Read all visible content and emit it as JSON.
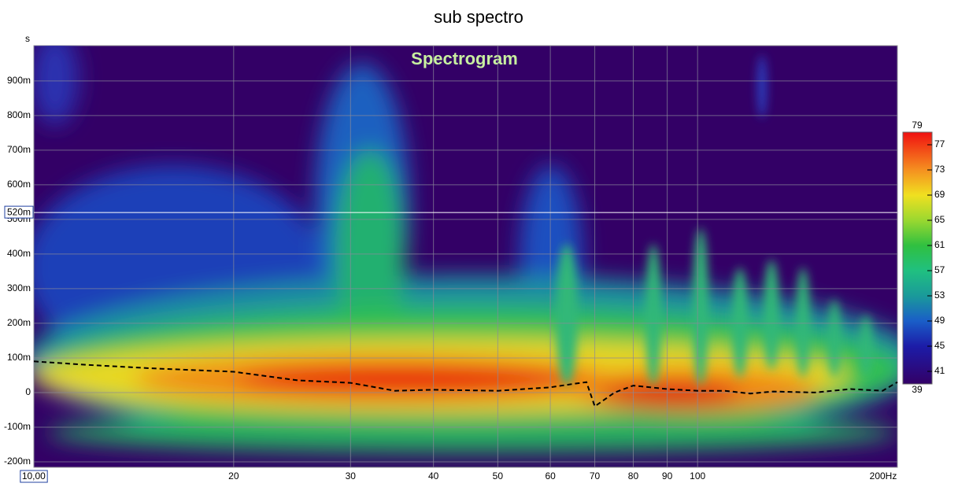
{
  "chart_data": {
    "type": "spectrogram",
    "title": "sub spectro",
    "subtitle": "Spectrogram",
    "y_unit": "s",
    "xscale": "log",
    "xlim": [
      10,
      200
    ],
    "xticks": [
      {
        "value": 10,
        "label": "10,00"
      },
      20,
      30,
      40,
      50,
      60,
      70,
      80,
      90,
      100,
      {
        "value": 200,
        "label": "200Hz"
      }
    ],
    "ylim": [
      -0.216,
      1.002
    ],
    "yticks": [
      {
        "value": -0.2,
        "label": "-200m"
      },
      {
        "value": -0.1,
        "label": "-100m"
      },
      0,
      {
        "value": 0.1,
        "label": "100m"
      },
      {
        "value": 0.2,
        "label": "200m"
      },
      {
        "value": 0.3,
        "label": "300m"
      },
      {
        "value": 0.4,
        "label": "400m"
      },
      {
        "value": 0.5,
        "label": "500m"
      },
      {
        "value": 0.6,
        "label": "600m"
      },
      {
        "value": 0.7,
        "label": "700m"
      },
      {
        "value": 0.8,
        "label": "800m"
      },
      {
        "value": 0.9,
        "label": "900m"
      }
    ],
    "grid": true,
    "cursor": {
      "value": 0.52,
      "label": "520m"
    },
    "series": [
      {
        "color": "#000000",
        "x": [
          10,
          12,
          15,
          20,
          25,
          30,
          35,
          40,
          50,
          60,
          65,
          68,
          70,
          75,
          80,
          90,
          100,
          110,
          120,
          130,
          150,
          170,
          190,
          200
        ],
        "values": [
          0.09,
          0.08,
          0.07,
          0.06,
          0.035,
          0.028,
          0.005,
          0.008,
          0.005,
          0.015,
          0.025,
          0.03,
          -0.04,
          0,
          0.02,
          0.01,
          0.005,
          0.005,
          -0.003,
          0.003,
          0,
          0.01,
          0.005,
          0.03
        ]
      }
    ],
    "colorbar": {
      "range": [
        39,
        79
      ],
      "ticks": [
        41,
        45,
        49,
        53,
        57,
        61,
        65,
        69,
        73,
        77
      ]
    }
  }
}
